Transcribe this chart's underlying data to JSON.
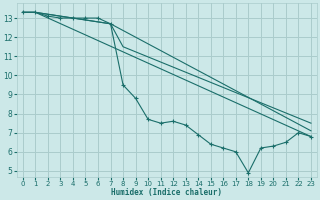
{
  "bg_color": "#cce8e8",
  "grid_color": "#aacccc",
  "line_color": "#1a6e6a",
  "xlabel": "Humidex (Indice chaleur)",
  "xlim": [
    -0.5,
    23.5
  ],
  "ylim": [
    4.7,
    13.8
  ],
  "yticks": [
    5,
    6,
    7,
    8,
    9,
    10,
    11,
    12,
    13
  ],
  "xticks": [
    0,
    1,
    2,
    3,
    4,
    5,
    6,
    7,
    8,
    9,
    10,
    11,
    12,
    13,
    14,
    15,
    16,
    17,
    18,
    19,
    20,
    21,
    22,
    23
  ],
  "main_line": {
    "x": [
      0,
      1,
      2,
      3,
      4,
      5,
      6,
      7,
      8,
      9,
      10,
      11,
      12,
      13,
      14,
      15,
      16,
      17,
      18,
      19,
      20,
      21,
      22,
      23
    ],
    "y": [
      13.3,
      13.3,
      13.1,
      13.0,
      13.0,
      13.0,
      13.0,
      12.7,
      9.5,
      8.8,
      7.7,
      7.5,
      7.6,
      7.4,
      6.9,
      6.4,
      6.2,
      6.0,
      4.9,
      6.2,
      6.3,
      6.5,
      7.0,
      6.8
    ]
  },
  "smooth_lines": [
    {
      "x": [
        0,
        1,
        23
      ],
      "y": [
        13.3,
        13.3,
        6.8
      ]
    },
    {
      "x": [
        0,
        1,
        7,
        23
      ],
      "y": [
        13.3,
        13.3,
        12.7,
        7.1
      ]
    },
    {
      "x": [
        0,
        1,
        7,
        8,
        23
      ],
      "y": [
        13.3,
        13.3,
        12.7,
        11.5,
        7.5
      ]
    }
  ]
}
